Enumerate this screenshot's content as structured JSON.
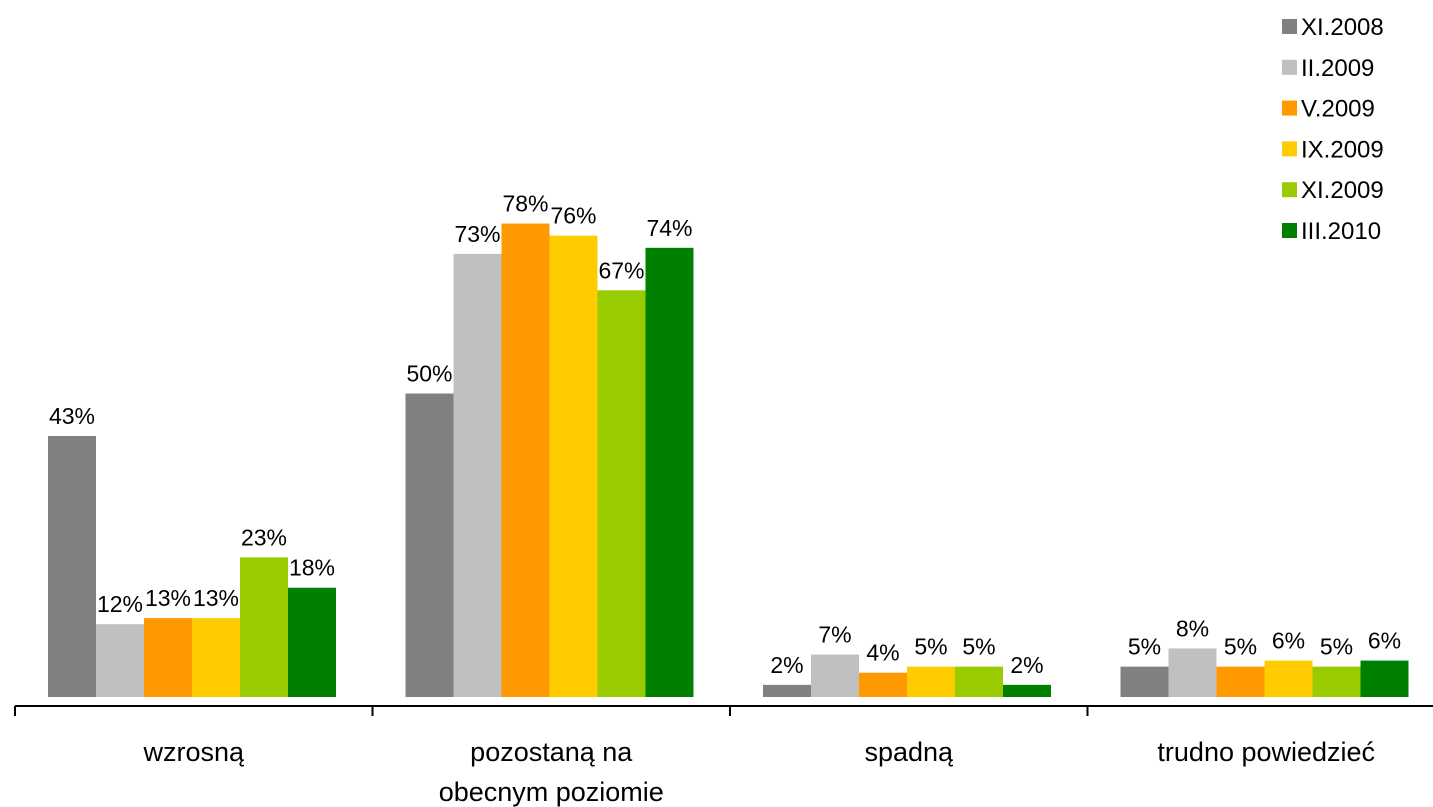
{
  "chart_data": {
    "type": "bar",
    "categories": [
      "wzrosną",
      "pozostaną na\nobecnym poziomie",
      "spadną",
      "trudno powiedzieć"
    ],
    "series": [
      {
        "name": "XI.2008",
        "color": "#808080",
        "values": [
          43,
          50,
          2,
          5
        ],
        "value_labels": [
          "43%",
          "50%",
          "2%",
          "5%"
        ]
      },
      {
        "name": "II.2009",
        "color": "#c0c0c0",
        "values": [
          12,
          73,
          7,
          8
        ],
        "value_labels": [
          "12%",
          "73%",
          "7%",
          "8%"
        ]
      },
      {
        "name": "V.2009",
        "color": "#ff9900",
        "values": [
          13,
          78,
          4,
          5
        ],
        "value_labels": [
          "13%",
          "78%",
          "4%",
          "5%"
        ]
      },
      {
        "name": "IX.2009",
        "color": "#ffcc00",
        "values": [
          13,
          76,
          5,
          6
        ],
        "value_labels": [
          "13%",
          "76%",
          "5%",
          "6%"
        ]
      },
      {
        "name": "XI.2009",
        "color": "#99cc00",
        "values": [
          23,
          67,
          5,
          5
        ],
        "value_labels": [
          "23%",
          "67%",
          "5%",
          "5%"
        ]
      },
      {
        "name": "III.2010",
        "color": "#008000",
        "values": [
          18,
          74,
          2,
          6
        ],
        "value_labels": [
          "18%",
          "74%",
          "2%",
          "6%"
        ]
      }
    ],
    "legend": "top-right"
  }
}
